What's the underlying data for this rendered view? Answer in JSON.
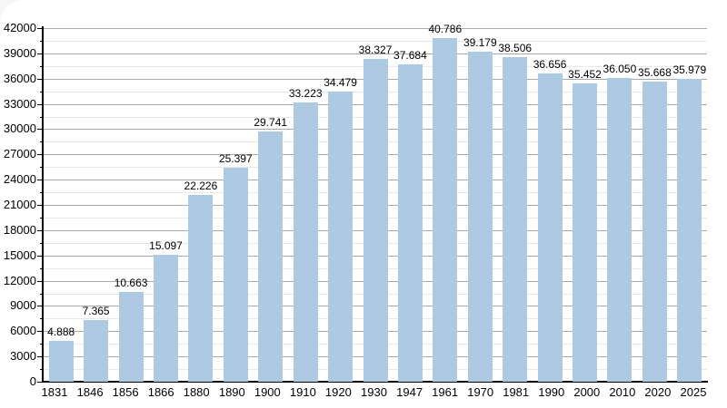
{
  "chart_data": {
    "type": "bar",
    "title": "",
    "xlabel": "",
    "ylabel": "",
    "categories": [
      "1831",
      "1846",
      "1856",
      "1866",
      "1880",
      "1890",
      "1900",
      "1910",
      "1920",
      "1930",
      "1947",
      "1961",
      "1970",
      "1981",
      "1990",
      "2000",
      "2010",
      "2020",
      "2025"
    ],
    "values": [
      4888,
      7365,
      10663,
      15097,
      22226,
      25397,
      29741,
      33223,
      34479,
      38327,
      37684,
      40786,
      39179,
      38506,
      36656,
      35452,
      36050,
      35668,
      35979
    ],
    "value_labels": [
      "4.888",
      "7.365",
      "10.663",
      "15.097",
      "22.226",
      "25.397",
      "29.741",
      "33.223",
      "34.479",
      "38.327",
      "37.684",
      "40.786",
      "39.179",
      "38.506",
      "36.656",
      "35.452",
      "36.050",
      "35.668",
      "35.979"
    ],
    "ylim": [
      0,
      42000
    ],
    "y_tick_step": 3000,
    "y_minor_step": 1500,
    "y_tick_labels": [
      "0",
      "3000",
      "6000",
      "9000",
      "12000",
      "15000",
      "18000",
      "21000",
      "24000",
      "27000",
      "30000",
      "33000",
      "36000",
      "39000",
      "42000"
    ],
    "grid": "on",
    "legend": "none",
    "colors": {
      "bar_fill": "#aecae3",
      "grid_major": "#a9a9a9",
      "grid_minor": "#e8e8e8",
      "axis": "#000000",
      "text": "#000000",
      "background": "#ffffff"
    }
  }
}
